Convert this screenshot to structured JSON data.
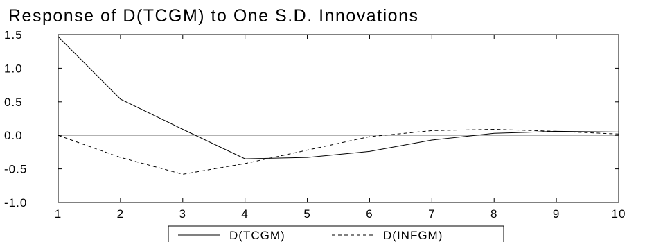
{
  "chart_data": {
    "type": "line",
    "title": "Response of D(TCGM) to One S.D. Innovations",
    "xlabel": "",
    "ylabel": "",
    "x": [
      1,
      2,
      3,
      4,
      5,
      6,
      7,
      8,
      9,
      10
    ],
    "xlim": [
      1,
      10
    ],
    "ylim": [
      -1.0,
      1.5
    ],
    "yticks": [
      1.5,
      1.0,
      0.5,
      0.0,
      -0.5,
      -1.0
    ],
    "ytick_labels": [
      "1.5",
      "1.0",
      "0.5",
      "0.0",
      "-0.5",
      "-1.0"
    ],
    "xtick_labels": [
      "1",
      "2",
      "3",
      "4",
      "5",
      "6",
      "7",
      "8",
      "9",
      "10"
    ],
    "zero_line": true,
    "grid": false,
    "legend_position": "bottom",
    "series": [
      {
        "name": "D(TCGM)",
        "style": "solid",
        "color": "#000000",
        "values": [
          1.47,
          0.54,
          0.09,
          -0.35,
          -0.33,
          -0.24,
          -0.07,
          0.03,
          0.06,
          0.05
        ]
      },
      {
        "name": "D(INFGM)",
        "style": "dashed",
        "color": "#000000",
        "values": [
          0.0,
          -0.33,
          -0.58,
          -0.42,
          -0.22,
          -0.02,
          0.07,
          0.09,
          0.06,
          0.02
        ]
      }
    ]
  }
}
